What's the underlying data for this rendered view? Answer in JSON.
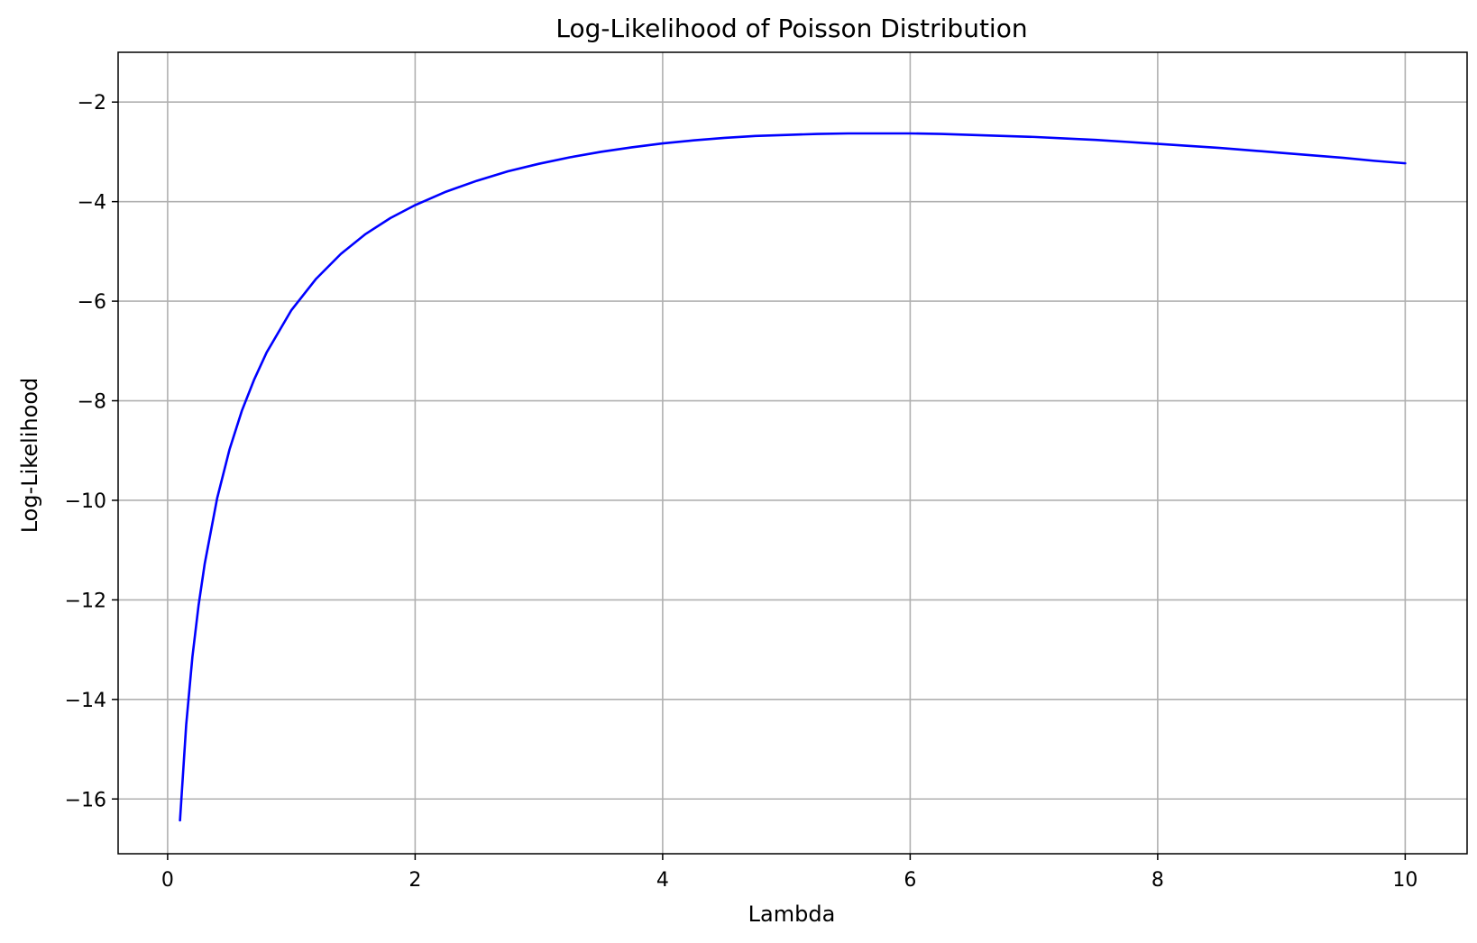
{
  "chart_data": {
    "type": "line",
    "title": "Log-Likelihood of Poisson Distribution",
    "xlabel": "Lambda",
    "ylabel": "Log-Likelihood",
    "xlim": [
      -0.4,
      10.5
    ],
    "ylim": [
      -17.1,
      -1.0
    ],
    "x_ticks": [
      0,
      2,
      4,
      6,
      8,
      10
    ],
    "x_tick_labels": [
      "0",
      "2",
      "4",
      "6",
      "8",
      "10"
    ],
    "y_ticks": [
      -2,
      -4,
      -6,
      -8,
      -10,
      -12,
      -14,
      -16
    ],
    "y_tick_labels": [
      "−2",
      "−4",
      "−6",
      "−8",
      "−10",
      "−12",
      "−14",
      "−16"
    ],
    "grid": true,
    "series": [
      {
        "color": "#0000ff",
        "x": [
          0.1,
          0.15,
          0.2,
          0.25,
          0.3,
          0.4,
          0.5,
          0.6,
          0.7,
          0.8,
          1.0,
          1.2,
          1.4,
          1.6,
          1.8,
          2.0,
          2.25,
          2.5,
          2.75,
          3.0,
          3.25,
          3.5,
          3.75,
          4.0,
          4.25,
          4.5,
          4.75,
          5.0,
          5.25,
          5.5,
          5.75,
          6.0,
          6.25,
          6.5,
          6.75,
          7.0,
          7.25,
          7.5,
          7.75,
          8.0,
          8.25,
          8.5,
          8.75,
          9.0,
          9.25,
          9.5,
          9.75,
          10.0
        ],
        "y": [
          -16.43,
          -14.51,
          -13.15,
          -12.11,
          -11.27,
          -9.96,
          -8.98,
          -8.2,
          -7.57,
          -7.03,
          -6.18,
          -5.55,
          -5.05,
          -4.65,
          -4.33,
          -4.07,
          -3.8,
          -3.58,
          -3.39,
          -3.24,
          -3.11,
          -3.0,
          -2.91,
          -2.83,
          -2.77,
          -2.72,
          -2.68,
          -2.66,
          -2.64,
          -2.63,
          -2.63,
          -2.63,
          -2.64,
          -2.66,
          -2.68,
          -2.7,
          -2.73,
          -2.76,
          -2.8,
          -2.84,
          -2.88,
          -2.92,
          -2.97,
          -3.02,
          -3.07,
          -3.12,
          -3.18,
          -3.23
        ]
      }
    ]
  }
}
